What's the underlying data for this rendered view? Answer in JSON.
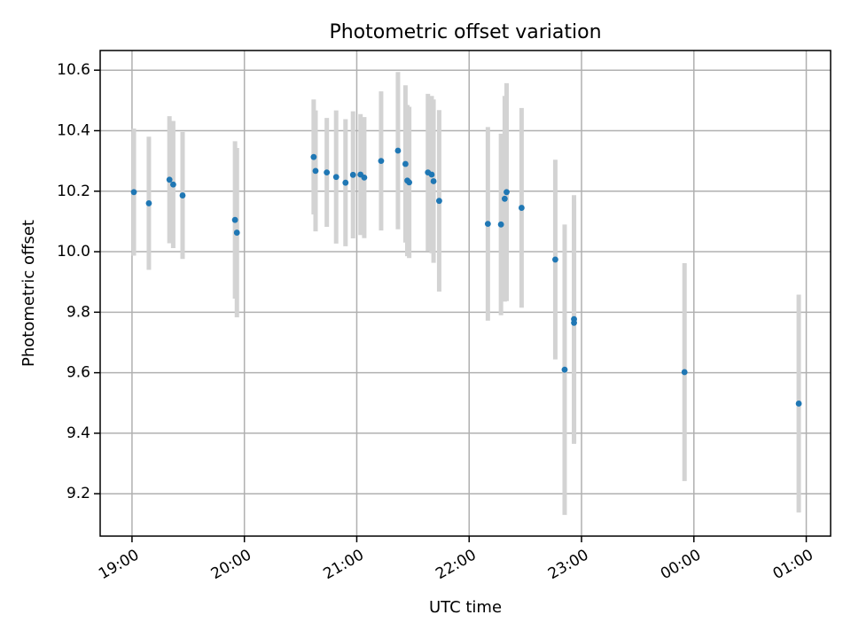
{
  "chart_data": {
    "type": "scatter",
    "title": "Photometric offset variation",
    "xlabel": "UTC time",
    "ylabel": "Photometric offset",
    "x_is_time": true,
    "xlim": [
      "18:43",
      "01:13"
    ],
    "ylim": [
      9.06,
      10.665
    ],
    "grid": true,
    "x_ticks": [
      "19:00",
      "20:00",
      "21:00",
      "22:00",
      "23:00",
      "00:00",
      "01:00"
    ],
    "y_ticks": [
      9.2,
      9.4,
      9.6,
      9.8,
      10.0,
      10.2,
      10.4,
      10.6
    ],
    "y_tick_labels": [
      "9.2",
      "9.4",
      "9.6",
      "9.8",
      "10.0",
      "10.2",
      "10.4",
      "10.6"
    ],
    "colors": {
      "points": "#1f77b4",
      "error_bars": "#d3d3d3"
    },
    "series": [
      {
        "points": [
          {
            "t": "19:01",
            "y": 10.197,
            "err": 0.21
          },
          {
            "t": "19:09",
            "y": 10.16,
            "err": 0.22
          },
          {
            "t": "19:20",
            "y": 10.238,
            "err": 0.21
          },
          {
            "t": "19:22",
            "y": 10.222,
            "err": 0.21
          },
          {
            "t": "19:27",
            "y": 10.186,
            "err": 0.21
          },
          {
            "t": "19:55",
            "y": 10.105,
            "err": 0.26
          },
          {
            "t": "19:56",
            "y": 10.063,
            "err": 0.28
          },
          {
            "t": "20:37",
            "y": 10.313,
            "err": 0.19
          },
          {
            "t": "20:38",
            "y": 10.267,
            "err": 0.2
          },
          {
            "t": "20:44",
            "y": 10.262,
            "err": 0.18
          },
          {
            "t": "20:49",
            "y": 10.247,
            "err": 0.22
          },
          {
            "t": "20:54",
            "y": 10.228,
            "err": 0.21
          },
          {
            "t": "20:58",
            "y": 10.254,
            "err": 0.21
          },
          {
            "t": "21:02",
            "y": 10.255,
            "err": 0.2
          },
          {
            "t": "21:04",
            "y": 10.245,
            "err": 0.2
          },
          {
            "t": "21:13",
            "y": 10.3,
            "err": 0.23
          },
          {
            "t": "21:22",
            "y": 10.334,
            "err": 0.26
          },
          {
            "t": "21:26",
            "y": 10.29,
            "err": 0.26
          },
          {
            "t": "21:27",
            "y": 10.235,
            "err": 0.25
          },
          {
            "t": "21:28",
            "y": 10.229,
            "err": 0.25
          },
          {
            "t": "21:38",
            "y": 10.262,
            "err": 0.26
          },
          {
            "t": "21:40",
            "y": 10.255,
            "err": 0.26
          },
          {
            "t": "21:41",
            "y": 10.233,
            "err": 0.27
          },
          {
            "t": "21:44",
            "y": 10.168,
            "err": 0.3
          },
          {
            "t": "22:10",
            "y": 10.092,
            "err": 0.32
          },
          {
            "t": "22:17",
            "y": 10.09,
            "err": 0.3
          },
          {
            "t": "22:19",
            "y": 10.175,
            "err": 0.34
          },
          {
            "t": "22:20",
            "y": 10.197,
            "err": 0.36
          },
          {
            "t": "22:28",
            "y": 10.145,
            "err": 0.33
          },
          {
            "t": "22:46",
            "y": 9.974,
            "err": 0.33
          },
          {
            "t": "22:51",
            "y": 9.61,
            "err": 0.48
          },
          {
            "t": "22:56",
            "y": 9.777,
            "err": 0.41
          },
          {
            "t": "22:56",
            "y": 9.765,
            "err": 0.4
          },
          {
            "t": "23:55",
            "y": 9.602,
            "err": 0.36
          },
          {
            "t": "00:56",
            "y": 9.498,
            "err": 0.36
          }
        ]
      }
    ]
  }
}
